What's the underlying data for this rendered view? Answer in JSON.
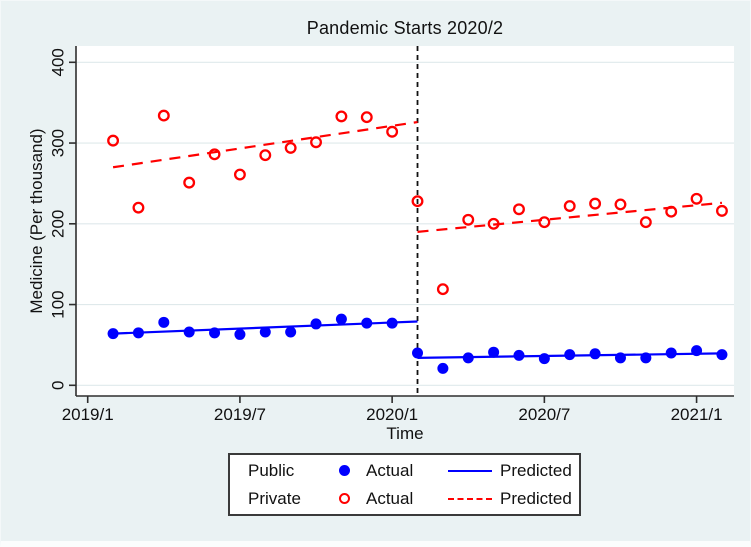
{
  "chart_data": {
    "type": "scatter",
    "subtype": "interrupted-time-series",
    "title": "Pandemic Starts 2020/2",
    "xlabel": "Time",
    "ylabel": "Medicine  (Per thousand)",
    "ylim": [
      0,
      400
    ],
    "y_ticks": [
      0,
      100,
      200,
      300,
      400
    ],
    "x_tick_labels": [
      "2019/1",
      "2019/7",
      "2020/1",
      "2020/7",
      "2021/1"
    ],
    "x_tick_month_index": [
      0,
      6,
      12,
      18,
      24
    ],
    "grid": "on",
    "cutoff": {
      "label": "2020/2",
      "month_index": 13,
      "line_style": "dashed-vertical-black"
    },
    "x_months": [
      "2019/2",
      "2019/3",
      "2019/4",
      "2019/5",
      "2019/6",
      "2019/7",
      "2019/8",
      "2019/9",
      "2019/10",
      "2019/11",
      "2019/12",
      "2020/1",
      "2020/2",
      "2020/3",
      "2020/4",
      "2020/5",
      "2020/6",
      "2020/7",
      "2020/8",
      "2020/9",
      "2020/10",
      "2020/11",
      "2020/12",
      "2021/1",
      "2021/2"
    ],
    "x_month_index": [
      1,
      2,
      3,
      4,
      5,
      6,
      7,
      8,
      9,
      10,
      11,
      12,
      13,
      14,
      15,
      16,
      17,
      18,
      19,
      20,
      21,
      22,
      23,
      24,
      25
    ],
    "series": [
      {
        "name": "Public Actual",
        "type": "scatter",
        "marker": "filled-circle",
        "color": "#0000ff",
        "values": [
          64,
          65,
          78,
          66,
          65,
          63,
          66,
          66,
          76,
          82,
          77,
          77,
          40,
          21,
          34,
          41,
          37,
          33,
          38,
          39,
          34,
          34,
          40,
          43,
          38
        ]
      },
      {
        "name": "Private Actual",
        "type": "scatter",
        "marker": "open-circle",
        "color": "#ff0000",
        "values": [
          303,
          220,
          334,
          251,
          286,
          261,
          285,
          294,
          301,
          333,
          332,
          314,
          228,
          119,
          205,
          200,
          218,
          202,
          222,
          225,
          224,
          202,
          215,
          231,
          216
        ]
      },
      {
        "name": "Public Predicted",
        "type": "line",
        "style": "solid",
        "color": "#0000ff",
        "segments": [
          {
            "x": [
              1,
              13
            ],
            "y": [
              64,
              79
            ]
          },
          {
            "x": [
              13,
              25
            ],
            "y": [
              34,
              39.5
            ]
          }
        ]
      },
      {
        "name": "Private Predicted",
        "type": "line",
        "style": "dashed",
        "color": "#ff0000",
        "segments": [
          {
            "x": [
              1,
              13
            ],
            "y": [
              270,
              326
            ]
          },
          {
            "x": [
              13,
              25
            ],
            "y": [
              190,
              226
            ]
          }
        ]
      }
    ],
    "legend_position": "bottom-center"
  },
  "legend": {
    "rows": [
      {
        "group": "Public",
        "actual_label": "Actual",
        "predicted_label": "Predicted",
        "marker": "filled-circle",
        "line": "solid"
      },
      {
        "group": "Private",
        "actual_label": "Actual",
        "predicted_label": "Predicted",
        "marker": "open-circle",
        "line": "dashed"
      }
    ]
  },
  "colors": {
    "public": "#0000ff",
    "private": "#ff0000",
    "background": "#eaf2f3",
    "plot_background": "#ffffff",
    "grid": "#dfe9eb",
    "axis": "#2e2e2e",
    "cutoff_line": "#111111",
    "text": "#111111"
  }
}
